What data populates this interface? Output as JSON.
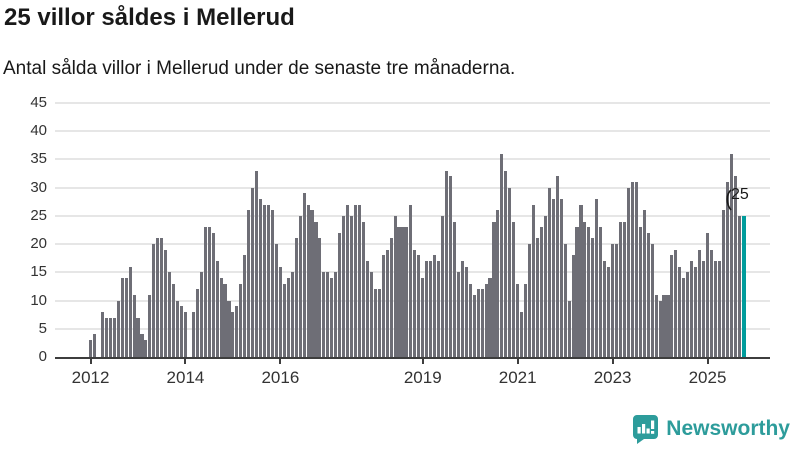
{
  "header": {
    "title": "25 villor såldes i Mellerud",
    "subtitle": "Antal sålda villor i Mellerud under de senaste tre månaderna."
  },
  "chart_data": {
    "type": "bar",
    "title": "25 villor såldes i Mellerud",
    "subtitle": "Antal sålda villor i Mellerud under de senaste tre månaderna.",
    "ylabel": "",
    "xlabel": "",
    "ylim": [
      0,
      45
    ],
    "grid": "horizontal",
    "y_ticks": [
      0,
      5,
      10,
      15,
      20,
      25,
      30,
      35,
      40,
      45
    ],
    "x_start_month": "2012-01",
    "x_end_month": "2025-10",
    "x_ticks": [
      {
        "label": "2012",
        "month_index": 0
      },
      {
        "label": "2014",
        "month_index": 24
      },
      {
        "label": "2016",
        "month_index": 48
      },
      {
        "label": "2019",
        "month_index": 84
      },
      {
        "label": "2021",
        "month_index": 108
      },
      {
        "label": "2023",
        "month_index": 132
      },
      {
        "label": "2025",
        "month_index": 156
      }
    ],
    "values": [
      3,
      4,
      0,
      8,
      7,
      7,
      7,
      10,
      14,
      14,
      16,
      11,
      7,
      4,
      3,
      11,
      20,
      21,
      21,
      19,
      15,
      13,
      10,
      9,
      8,
      0,
      8,
      12,
      15,
      23,
      23,
      22,
      17,
      14,
      13,
      10,
      8,
      9,
      13,
      18,
      26,
      30,
      33,
      28,
      27,
      27,
      26,
      20,
      16,
      13,
      14,
      15,
      21,
      25,
      29,
      27,
      26,
      24,
      21,
      15,
      15,
      14,
      15,
      22,
      25,
      27,
      25,
      27,
      27,
      24,
      17,
      15,
      12,
      12,
      18,
      19,
      21,
      25,
      23,
      23,
      23,
      27,
      19,
      18,
      14,
      17,
      17,
      18,
      17,
      25,
      33,
      32,
      24,
      15,
      17,
      16,
      13,
      11,
      12,
      12,
      13,
      14,
      24,
      26,
      36,
      33,
      30,
      24,
      13,
      8,
      13,
      20,
      27,
      21,
      23,
      25,
      30,
      28,
      32,
      28,
      20,
      10,
      18,
      23,
      27,
      24,
      23,
      21,
      28,
      23,
      17,
      16,
      20,
      20,
      24,
      24,
      30,
      31,
      31,
      23,
      26,
      22,
      20,
      11,
      10,
      11,
      11,
      18,
      19,
      16,
      14,
      15,
      17,
      16,
      19,
      17,
      22,
      19,
      17,
      17,
      26,
      31,
      36,
      32,
      25,
      25
    ],
    "highlight": {
      "index": 165,
      "value": 25,
      "annotation": "25"
    },
    "colors": {
      "bar": "#6e6e76",
      "highlight": "#009c9c",
      "gridline": "#e6e6e6",
      "axis": "#3d3d3d",
      "text": "#191919",
      "tick_text": "#333333"
    }
  },
  "annotation": {
    "label": "25"
  },
  "footer": {
    "brand": "Newsworthy"
  }
}
